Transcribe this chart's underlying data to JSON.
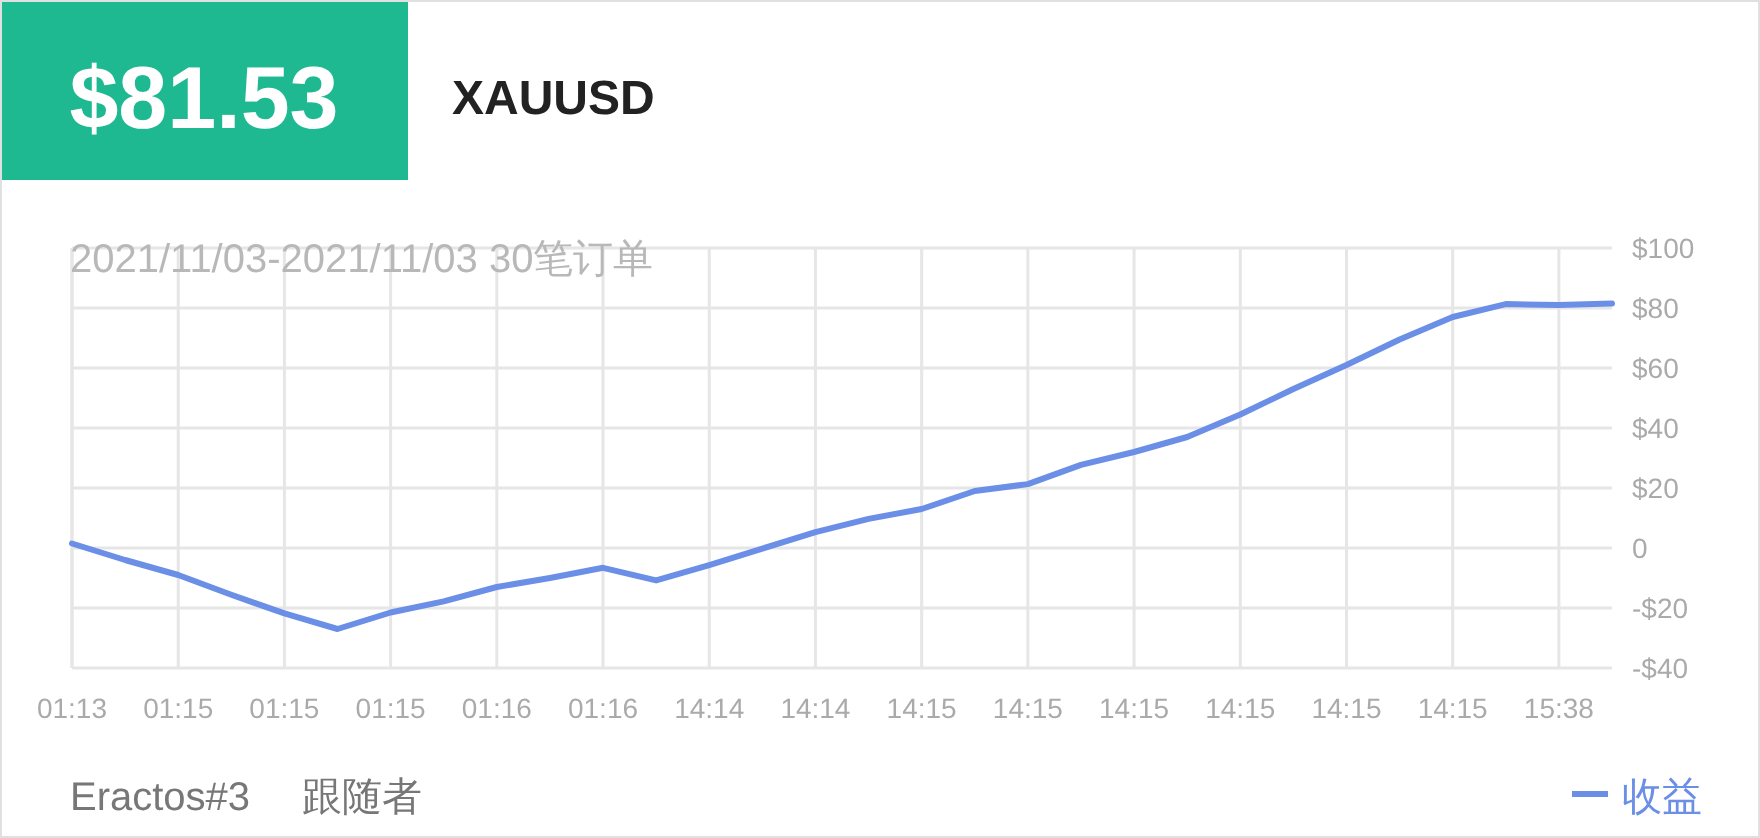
{
  "chart_data": {
    "type": "line",
    "title": "XAUUSD",
    "subtitle": "2021/11/03-2021/11/03 30笔订单",
    "annotations": [
      "$81.53",
      "Eractos#3",
      "跟随者"
    ],
    "categories": [
      "01:13",
      null,
      "01:15",
      null,
      "01:15",
      null,
      "01:15",
      null,
      "01:16",
      null,
      "01:16",
      null,
      "14:14",
      null,
      "14:14",
      null,
      "14:15",
      null,
      "14:15",
      null,
      "14:15",
      null,
      "14:15",
      null,
      "14:15",
      null,
      "14:15",
      null,
      "15:38",
      null
    ],
    "series": [
      {
        "name": "收益",
        "color": "#6b8fe6",
        "values": [
          1.5,
          -4,
          -9,
          -15.6,
          -21.8,
          -27,
          -21.5,
          -17.8,
          -13,
          -10,
          -6.6,
          -10.8,
          -5.7,
          -0.2,
          5.3,
          9.7,
          13,
          19,
          21.3,
          27.7,
          32,
          37,
          44.5,
          53,
          61,
          69.5,
          77,
          81.3,
          81,
          81.5
        ]
      }
    ],
    "ylim": [
      -40,
      100
    ],
    "yticks": [
      {
        "value": -40,
        "label": "-$40"
      },
      {
        "value": -20,
        "label": "-$20"
      },
      0,
      {
        "value": 20,
        "label": "$20"
      },
      {
        "value": 40,
        "label": "$40"
      },
      {
        "value": 60,
        "label": "$60"
      },
      {
        "value": 80,
        "label": "$80"
      },
      {
        "value": 100,
        "label": "$100"
      }
    ],
    "grid": true,
    "legend": "bottom right",
    "marker": "none",
    "line_style": "solid"
  }
}
